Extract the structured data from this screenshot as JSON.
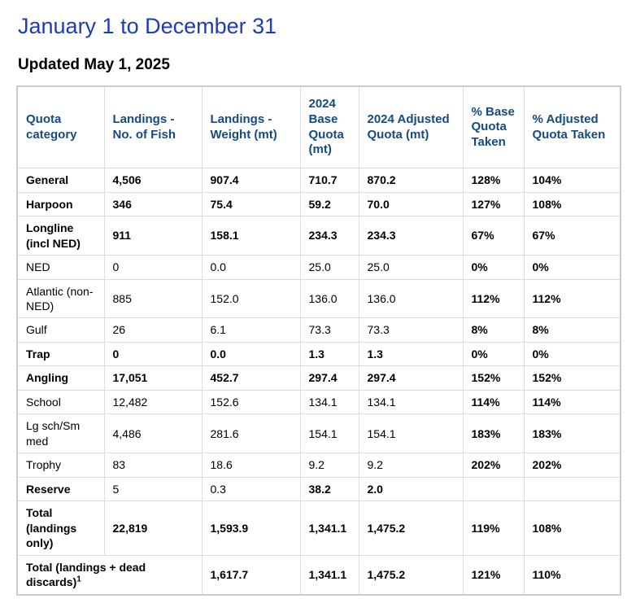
{
  "page": {
    "title": "January 1 to December 31",
    "updated": "Updated May 1, 2025"
  },
  "colors": {
    "title_text": "#1d3cbb",
    "table_header_text": "#144b82",
    "table_outer_border": "#c8cdd3",
    "table_grid_line": "#dcdcdc"
  },
  "table": {
    "columns": [
      "Quota category",
      "Landings - No. of Fish",
      "Landings - Weight (mt)",
      "2024 Base Quota (mt)",
      "2024 Adjusted Quota (mt)",
      "% Base Quota Taken",
      "% Adjusted Quota Taken"
    ],
    "rows": [
      {
        "label": "General",
        "label_bold": true,
        "cells": [
          "4,506",
          "907.4",
          "710.7",
          "870.2",
          "128%",
          "104%"
        ],
        "bold": [
          true,
          true,
          true,
          true,
          true,
          true
        ]
      },
      {
        "label": "Harpoon",
        "label_bold": true,
        "cells": [
          "346",
          "75.4",
          "59.2",
          "70.0",
          "127%",
          "108%"
        ],
        "bold": [
          true,
          true,
          true,
          true,
          true,
          true
        ]
      },
      {
        "label": "Longline (incl NED)",
        "label_bold": true,
        "cells": [
          "911",
          "158.1",
          "234.3",
          "234.3",
          "67%",
          "67%"
        ],
        "bold": [
          true,
          true,
          true,
          true,
          true,
          true
        ]
      },
      {
        "label": "NED",
        "label_bold": false,
        "cells": [
          "0",
          "0.0",
          "25.0",
          "25.0",
          "0%",
          "0%"
        ],
        "bold": [
          false,
          false,
          false,
          false,
          true,
          true
        ]
      },
      {
        "label": "Atlantic (non-NED)",
        "label_bold": false,
        "cells": [
          "885",
          "152.0",
          "136.0",
          "136.0",
          "112%",
          "112%"
        ],
        "bold": [
          false,
          false,
          false,
          false,
          true,
          true
        ]
      },
      {
        "label": "Gulf",
        "label_bold": false,
        "cells": [
          "26",
          "6.1",
          "73.3",
          "73.3",
          "8%",
          "8%"
        ],
        "bold": [
          false,
          false,
          false,
          false,
          true,
          true
        ]
      },
      {
        "label": "Trap",
        "label_bold": true,
        "cells": [
          "0",
          "0.0",
          "1.3",
          "1.3",
          "0%",
          "0%"
        ],
        "bold": [
          true,
          true,
          true,
          true,
          true,
          true
        ]
      },
      {
        "label": "Angling",
        "label_bold": true,
        "cells": [
          "17,051",
          "452.7",
          "297.4",
          "297.4",
          "152%",
          "152%"
        ],
        "bold": [
          true,
          true,
          true,
          true,
          true,
          true
        ]
      },
      {
        "label": "School",
        "label_bold": false,
        "cells": [
          "12,482",
          "152.6",
          "134.1",
          "134.1",
          "114%",
          "114%"
        ],
        "bold": [
          false,
          false,
          false,
          false,
          true,
          true
        ]
      },
      {
        "label": "Lg sch/Sm med",
        "label_bold": false,
        "cells": [
          "4,486",
          "281.6",
          "154.1",
          "154.1",
          "183%",
          "183%"
        ],
        "bold": [
          false,
          false,
          false,
          false,
          true,
          true
        ]
      },
      {
        "label": "Trophy",
        "label_bold": false,
        "cells": [
          "83",
          "18.6",
          "9.2",
          "9.2",
          "202%",
          "202%"
        ],
        "bold": [
          false,
          false,
          false,
          false,
          true,
          true
        ]
      },
      {
        "label": "Reserve",
        "label_bold": true,
        "cells": [
          "5",
          "0.3",
          "38.2",
          "2.0",
          "",
          ""
        ],
        "bold": [
          false,
          false,
          true,
          true,
          false,
          false
        ]
      },
      {
        "label": "Total (landings only)",
        "label_bold": true,
        "cells": [
          "22,819",
          "1,593.9",
          "1,341.1",
          "1,475.2",
          "119%",
          "108%"
        ],
        "bold": [
          true,
          true,
          true,
          true,
          true,
          true
        ]
      },
      {
        "label": "Total (landings + dead discards)",
        "sup": "1",
        "label_bold": true,
        "colspan": 2,
        "cells": [
          "1,617.7",
          "1,341.1",
          "1,475.2",
          "121%",
          "110%"
        ],
        "bold": [
          true,
          true,
          true,
          true,
          true
        ]
      }
    ]
  }
}
